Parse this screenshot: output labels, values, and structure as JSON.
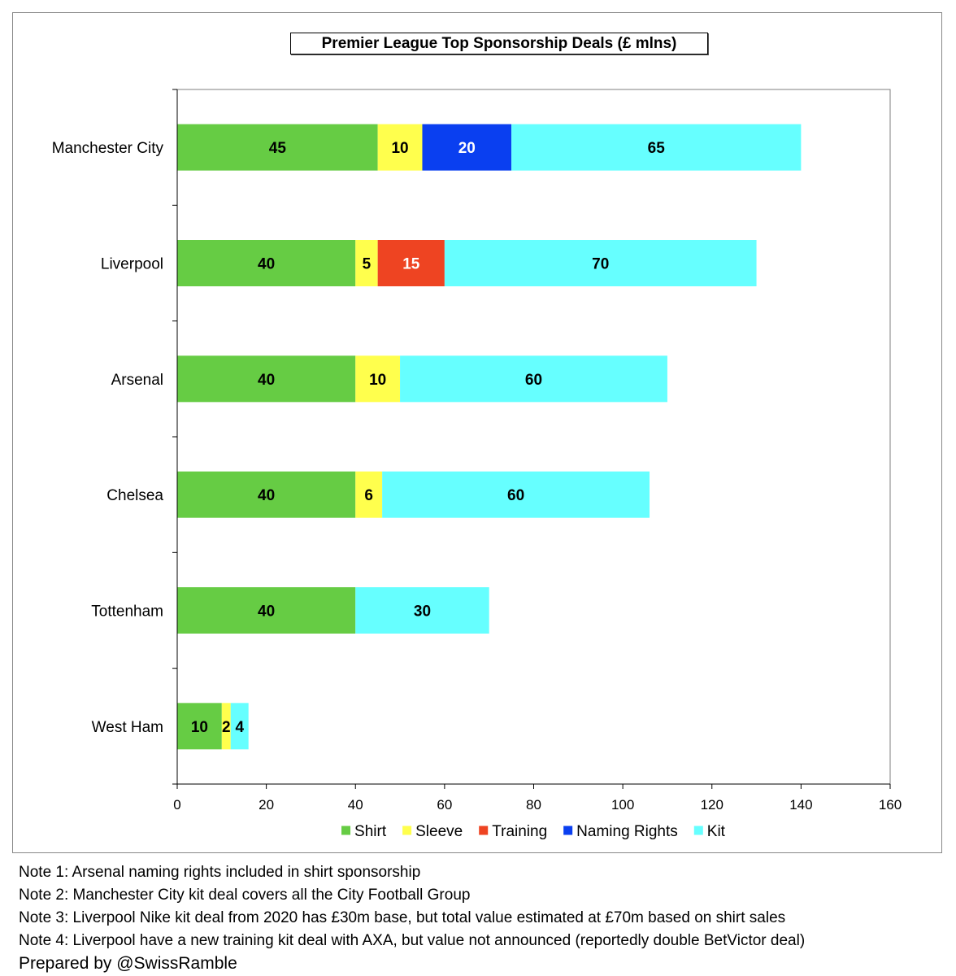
{
  "chart_data": {
    "type": "bar",
    "orientation": "horizontal",
    "stacked": true,
    "title": "Premier League Top Sponsorship Deals (£ mlns)",
    "xlabel": "",
    "ylabel": "",
    "xlim": [
      0,
      160
    ],
    "x_ticks": [
      0,
      20,
      40,
      60,
      80,
      100,
      120,
      140,
      160
    ],
    "categories": [
      "Manchester City",
      "Liverpool",
      "Arsenal",
      "Chelsea",
      "Tottenham",
      "West Ham"
    ],
    "series": [
      {
        "name": "Shirt",
        "color": "#66cc44",
        "values": [
          45,
          40,
          40,
          40,
          40,
          10
        ]
      },
      {
        "name": "Sleeve",
        "color": "#ffff4d",
        "values": [
          10,
          5,
          10,
          6,
          null,
          2
        ]
      },
      {
        "name": "Training",
        "color": "#ee4422",
        "values": [
          null,
          15,
          null,
          null,
          null,
          null
        ]
      },
      {
        "name": "Naming Rights",
        "color": "#0a3ff0",
        "values": [
          20,
          null,
          null,
          null,
          null,
          null
        ]
      },
      {
        "name": "Kit",
        "color": "#66ffff",
        "values": [
          65,
          70,
          60,
          60,
          30,
          4
        ]
      }
    ],
    "label_colors": {
      "Naming Rights": "#ffffff",
      "Training": "#ffffff"
    },
    "legend": "bottom",
    "grid": false
  },
  "notes": [
    "Note 1: Arsenal naming rights included in shirt sponsorship",
    "Note 2: Manchester City kit deal covers all the City Football Group",
    "Note 3: Liverpool Nike kit deal from 2020 has £30m base, but total value estimated at £70m based on shirt sales",
    "Note 4: Liverpool have a new training kit deal with AXA, but value not announced (reportedly double BetVictor deal)"
  ],
  "credit": "Prepared by @SwissRamble"
}
